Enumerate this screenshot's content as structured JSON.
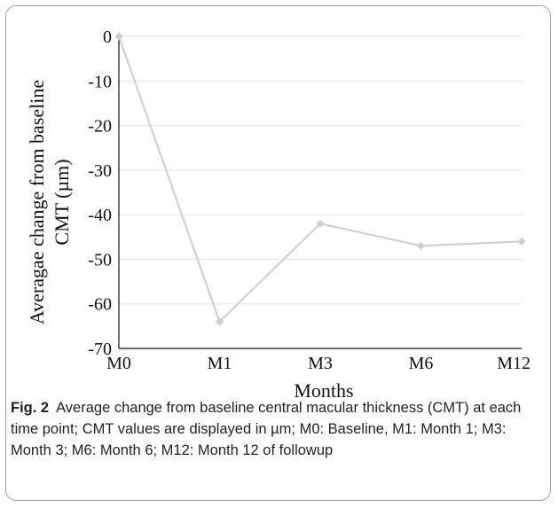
{
  "chart_data": {
    "type": "line",
    "categories": [
      "M0",
      "M1",
      "M3",
      "M6",
      "M12"
    ],
    "series": [
      {
        "values": [
          0,
          -64,
          -42,
          -47,
          -46
        ],
        "color": "#d0d0d0"
      }
    ],
    "xlabel": "Months",
    "ylabel_line1": "Averagae change from baseline",
    "ylabel_line2": "CMT (µm)",
    "ylim": [
      -70,
      0
    ],
    "yticks": [
      0,
      -10,
      -20,
      -30,
      -40,
      -50,
      -60,
      -70
    ],
    "ytick_labels": [
      "0",
      "-10",
      "-20",
      "-30",
      "-40",
      "-50",
      "-60",
      "-70"
    ],
    "grid": true,
    "gridline_color": "#e3e3e3",
    "axis_color": "#111111"
  },
  "caption": {
    "label": "Fig. 2",
    "text": "Average change from baseline central macular thickness (CMT) at each time point; CMT values are displayed in µm; M0: Baseline, M1: Month 1; M3: Month 3; M6: Month 6; M12: Month 12 of followup"
  }
}
